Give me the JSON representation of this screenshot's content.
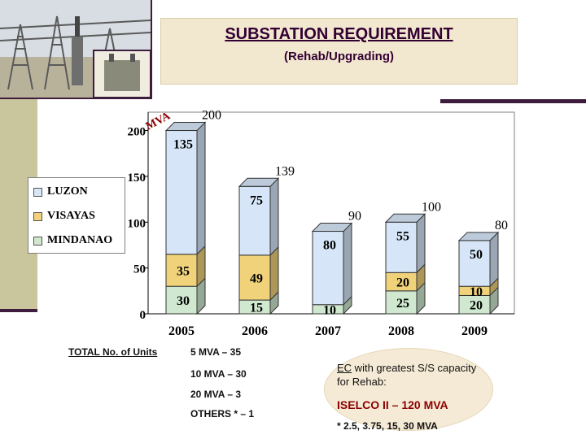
{
  "title": "SUBSTATION REQUIREMENT",
  "subtitle": "(Rehab/Upgrading)",
  "chart_data": {
    "type": "bar",
    "stacked": true,
    "unit": "MVA",
    "categories": [
      "2005",
      "2006",
      "2007",
      "2008",
      "2009"
    ],
    "series": [
      {
        "name": "MINDANAO",
        "values": [
          30,
          15,
          10,
          25,
          20
        ],
        "color": "#cfe8cf"
      },
      {
        "name": "VISAYAS",
        "values": [
          35,
          49,
          0,
          20,
          10
        ],
        "color": "#f0d27a"
      },
      {
        "name": "LUZON",
        "values": [
          135,
          75,
          80,
          55,
          50
        ],
        "color": "#d6e6f8"
      }
    ],
    "segment_labels": [
      [
        "30",
        "35",
        "135"
      ],
      [
        "15",
        "49",
        "75"
      ],
      [
        "10",
        "",
        "80"
      ],
      [
        "25",
        "20",
        "55"
      ],
      [
        "20",
        "10",
        "50"
      ]
    ],
    "totals": [
      "200",
      "139",
      "90",
      "100",
      "80"
    ],
    "y_ticks": [
      "0",
      "50",
      "100",
      "150",
      "200"
    ],
    "ylim": [
      0,
      220
    ],
    "legend": [
      "LUZON",
      "VISAYAS",
      "MINDANAO"
    ],
    "legend_position": "left"
  },
  "totals_panel": {
    "label": "TOTAL No. of Units",
    "rows": [
      "5 MVA  –  35",
      "10 MVA  –  30",
      "20 MVA  –  3",
      "OTHERS *  –  1"
    ]
  },
  "highlight": {
    "ec_prefix": "EC",
    "ec_rest": " with greatest S/S capacity for Rehab:",
    "ec_name": "ISELCO II – 120 MVA",
    "note": "* 2.5, 3.75, 15, 30 MVA"
  }
}
